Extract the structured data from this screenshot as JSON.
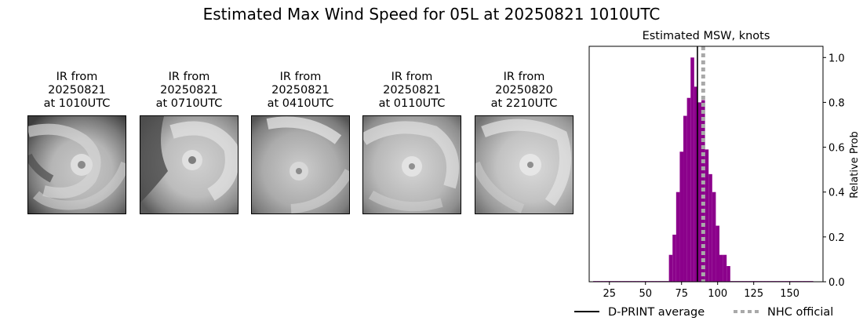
{
  "figure": {
    "title": "Estimated Max Wind Speed for 05L at 20250821 1010UTC"
  },
  "ir_panels": [
    {
      "line1": "IR from",
      "line2": "20250821",
      "line3": "at 1010UTC"
    },
    {
      "line1": "IR from",
      "line2": "20250821",
      "line3": "at 0710UTC"
    },
    {
      "line1": "IR from",
      "line2": "20250821",
      "line3": "at 0410UTC"
    },
    {
      "line1": "IR from",
      "line2": "20250821",
      "line3": "at 0110UTC"
    },
    {
      "line1": "IR from",
      "line2": "20250820",
      "line3": "at 2210UTC"
    }
  ],
  "chart_data": {
    "type": "bar",
    "title": "Estimated MSW, knots",
    "xlabel": "",
    "ylabel": "Relative Prob",
    "xlim": [
      11,
      173
    ],
    "ylim": [
      0,
      1.05
    ],
    "xticks": [
      25,
      50,
      75,
      100,
      125,
      150
    ],
    "yticks": [
      0.0,
      0.2,
      0.4,
      0.6,
      0.8,
      1.0
    ],
    "ytick_labels": [
      "0.0",
      "0.2",
      "0.4",
      "0.6",
      "0.8",
      "1.0"
    ],
    "y_axis_side": "right",
    "bar_color": "#8b008b",
    "bin_width": 2.5,
    "bins": [
      {
        "x": 15,
        "y": 0.003
      },
      {
        "x": 17.5,
        "y": 0.003
      },
      {
        "x": 20,
        "y": 0.003
      },
      {
        "x": 22.5,
        "y": 0.003
      },
      {
        "x": 25,
        "y": 0.003
      },
      {
        "x": 27.5,
        "y": 0.003
      },
      {
        "x": 30,
        "y": 0.003
      },
      {
        "x": 32.5,
        "y": 0.003
      },
      {
        "x": 35,
        "y": 0.003
      },
      {
        "x": 37.5,
        "y": 0.003
      },
      {
        "x": 40,
        "y": 0.003
      },
      {
        "x": 42.5,
        "y": 0.003
      },
      {
        "x": 45,
        "y": 0.003
      },
      {
        "x": 47.5,
        "y": 0.003
      },
      {
        "x": 50,
        "y": 0.003
      },
      {
        "x": 52.5,
        "y": 0.003
      },
      {
        "x": 55,
        "y": 0.003
      },
      {
        "x": 57.5,
        "y": 0.003
      },
      {
        "x": 60,
        "y": 0.003
      },
      {
        "x": 62.5,
        "y": 0.003
      },
      {
        "x": 65,
        "y": 0.003
      },
      {
        "x": 67.5,
        "y": 0.12
      },
      {
        "x": 70,
        "y": 0.21
      },
      {
        "x": 72.5,
        "y": 0.4
      },
      {
        "x": 75,
        "y": 0.58
      },
      {
        "x": 77.5,
        "y": 0.74
      },
      {
        "x": 80,
        "y": 0.82
      },
      {
        "x": 82.5,
        "y": 1.0
      },
      {
        "x": 85,
        "y": 0.87
      },
      {
        "x": 87.5,
        "y": 0.8
      },
      {
        "x": 90,
        "y": 0.81
      },
      {
        "x": 92.5,
        "y": 0.59
      },
      {
        "x": 95,
        "y": 0.48
      },
      {
        "x": 97.5,
        "y": 0.4
      },
      {
        "x": 100,
        "y": 0.25
      },
      {
        "x": 102.5,
        "y": 0.12
      },
      {
        "x": 105,
        "y": 0.12
      },
      {
        "x": 107.5,
        "y": 0.07
      },
      {
        "x": 110,
        "y": 0.003
      },
      {
        "x": 112.5,
        "y": 0.003
      },
      {
        "x": 115,
        "y": 0.003
      },
      {
        "x": 117.5,
        "y": 0.003
      },
      {
        "x": 120,
        "y": 0.003
      },
      {
        "x": 122.5,
        "y": 0.003
      },
      {
        "x": 125,
        "y": 0.003
      },
      {
        "x": 127.5,
        "y": 0.003
      },
      {
        "x": 130,
        "y": 0.003
      },
      {
        "x": 132.5,
        "y": 0.003
      },
      {
        "x": 135,
        "y": 0.003
      },
      {
        "x": 137.5,
        "y": 0.003
      },
      {
        "x": 140,
        "y": 0.003
      },
      {
        "x": 142.5,
        "y": 0.003
      },
      {
        "x": 145,
        "y": 0.003
      },
      {
        "x": 147.5,
        "y": 0.003
      },
      {
        "x": 150,
        "y": 0.003
      },
      {
        "x": 152.5,
        "y": 0.003
      },
      {
        "x": 155,
        "y": 0.003
      },
      {
        "x": 157.5,
        "y": 0.003
      },
      {
        "x": 160,
        "y": 0.003
      },
      {
        "x": 162.5,
        "y": 0.003
      },
      {
        "x": 165,
        "y": 0.003
      }
    ],
    "dprint_average": 86,
    "nhc_official": 90,
    "legend": {
      "placement": "bottom",
      "dprint_label": "D-PRINT average",
      "dprint_color": "#000000",
      "nhc_label": "NHC official",
      "nhc_color": "#a9a9a9"
    }
  }
}
